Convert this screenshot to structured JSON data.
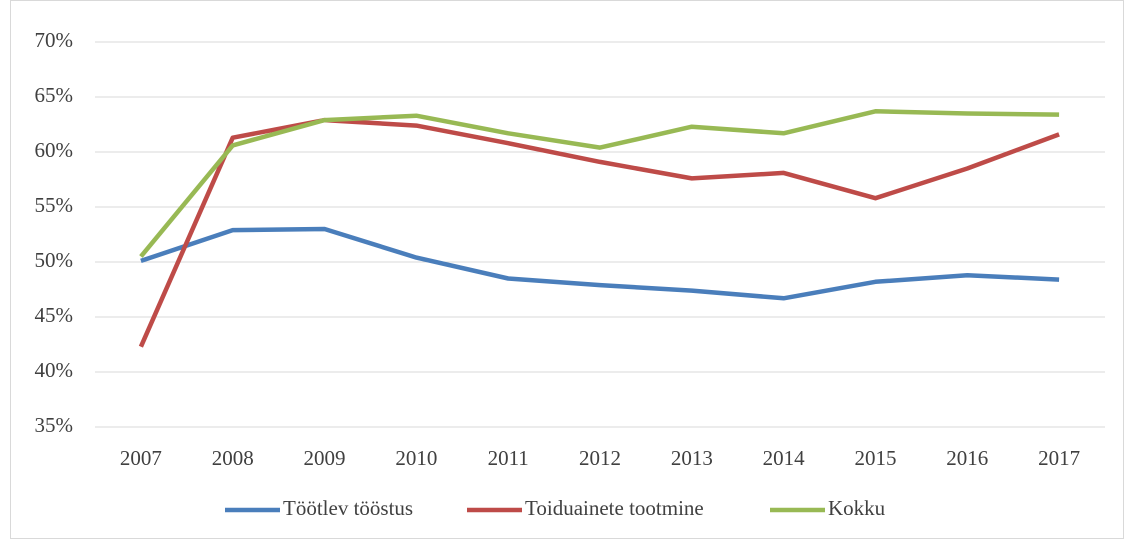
{
  "chart_data": {
    "type": "line",
    "categories": [
      "2007",
      "2008",
      "2009",
      "2010",
      "2011",
      "2012",
      "2013",
      "2014",
      "2015",
      "2016",
      "2017"
    ],
    "series": [
      {
        "name": "Töötlev tööstus",
        "color": "#4a7ebb",
        "values": [
          50.1,
          52.9,
          53.0,
          50.4,
          48.5,
          47.9,
          47.4,
          46.7,
          48.2,
          48.8,
          48.4
        ]
      },
      {
        "name": "Toiduainete tootmine",
        "color": "#be4b48",
        "values": [
          42.3,
          61.3,
          62.9,
          62.4,
          60.8,
          59.1,
          57.6,
          58.1,
          55.8,
          58.5,
          61.6
        ]
      },
      {
        "name": "Kokku",
        "color": "#98b954",
        "values": [
          50.5,
          60.6,
          62.9,
          63.3,
          61.7,
          60.4,
          62.3,
          61.7,
          63.7,
          63.5,
          63.4
        ]
      }
    ],
    "ylim": [
      35,
      70
    ],
    "yticks": [
      {
        "value": 35,
        "label": "35%"
      },
      {
        "value": 40,
        "label": "40%"
      },
      {
        "value": 45,
        "label": "45%"
      },
      {
        "value": 50,
        "label": "50%"
      },
      {
        "value": 55,
        "label": "55%"
      },
      {
        "value": 60,
        "label": "60%"
      },
      {
        "value": 65,
        "label": "65%"
      },
      {
        "value": 70,
        "label": "70%"
      }
    ],
    "grid": true,
    "legend": "bottom"
  }
}
